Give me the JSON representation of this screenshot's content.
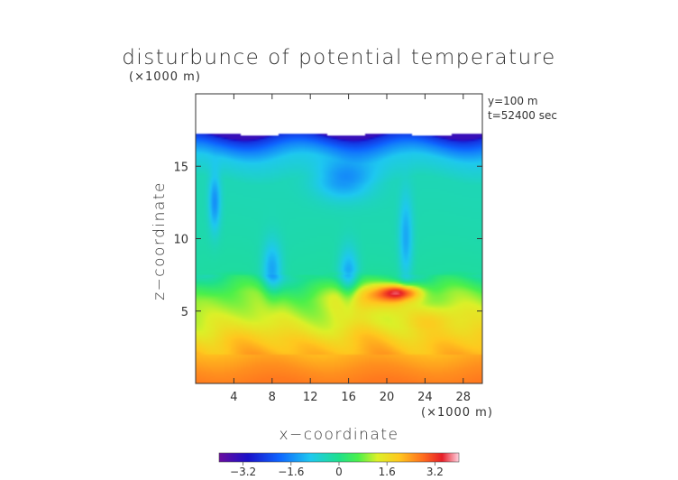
{
  "chart_data": {
    "type": "heatmap",
    "title": "disturbunce of potential temperature",
    "unit_note": "(×1000 m)",
    "annotations": [
      "y=100 m",
      "t=52400 sec"
    ],
    "xlabel": "x−coordinate",
    "ylabel": "z−coordinate",
    "x_unit": "(×1000 m)",
    "xlim": [
      0,
      30
    ],
    "ylim": [
      0,
      20
    ],
    "x_ticks": [
      4,
      8,
      12,
      16,
      20,
      24,
      28
    ],
    "y_ticks": [
      5,
      10,
      15
    ],
    "colorbar": {
      "range": [
        -4,
        4
      ],
      "ticks": [
        {
          "value": -3.2,
          "label": "−3.2"
        },
        {
          "value": -1.6,
          "label": "−1.6"
        },
        {
          "value": 0,
          "label": "0"
        },
        {
          "value": 1.6,
          "label": "1.6"
        },
        {
          "value": 3.2,
          "label": "3.2"
        }
      ]
    },
    "domain_top_z": 17.2,
    "vertical_profile": [
      {
        "z": 0.0,
        "value": 2.7
      },
      {
        "z": 1.0,
        "value": 2.5
      },
      {
        "z": 2.0,
        "value": 2.2
      },
      {
        "z": 3.0,
        "value": 1.9
      },
      {
        "z": 4.0,
        "value": 1.4
      },
      {
        "z": 5.0,
        "value": 1.1
      },
      {
        "z": 6.0,
        "value": 0.8
      },
      {
        "z": 6.8,
        "value": 0.3
      },
      {
        "z": 7.5,
        "value": -0.2
      },
      {
        "z": 10.0,
        "value": -0.3
      },
      {
        "z": 14.0,
        "value": -0.4
      },
      {
        "z": 15.5,
        "value": -0.9
      },
      {
        "z": 16.3,
        "value": -1.7
      },
      {
        "z": 17.0,
        "value": -2.6
      },
      {
        "z": 17.2,
        "value": -3.4
      }
    ],
    "anomalies": [
      {
        "x": 21.5,
        "z": 6.3,
        "value": 2.4,
        "rx": 2.2,
        "rz": 0.55
      },
      {
        "x": 18.5,
        "z": 6.0,
        "value": 1.3,
        "rx": 3.5,
        "rz": 1.0
      },
      {
        "x": 16.0,
        "z": 7.3,
        "value": -1.2,
        "rx": 1.0,
        "rz": 2.0
      },
      {
        "x": 8.0,
        "z": 7.8,
        "value": -1.1,
        "rx": 1.0,
        "rz": 2.0
      },
      {
        "x": 2.0,
        "z": 12.5,
        "value": -1.2,
        "rx": 0.6,
        "rz": 2.0
      },
      {
        "x": 15.5,
        "z": 14.0,
        "value": -1.1,
        "rx": 3.0,
        "rz": 1.3
      },
      {
        "x": 22.0,
        "z": 10.0,
        "value": -1.0,
        "rx": 0.7,
        "rz": 3.0
      },
      {
        "x": 25.0,
        "z": 4.5,
        "value": 0.6,
        "rx": 3.0,
        "rz": 1.0
      }
    ]
  }
}
